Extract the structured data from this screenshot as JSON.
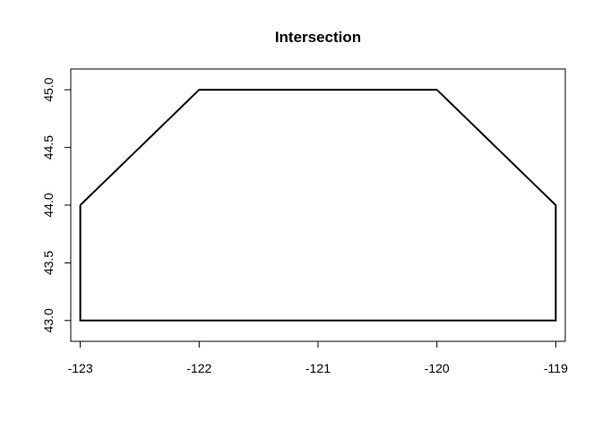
{
  "chart_data": {
    "type": "line",
    "title": "Intersection",
    "xlabel": "",
    "ylabel": "",
    "xlim": [
      -123.08,
      -118.92
    ],
    "ylim": [
      42.82,
      45.18
    ],
    "grid": false,
    "x_ticks": [
      -123,
      -122,
      -121,
      -120,
      -119
    ],
    "x_tick_labels": [
      "-123",
      "-122",
      "-121",
      "-120",
      "-119"
    ],
    "y_ticks": [
      43.0,
      43.5,
      44.0,
      44.5,
      45.0
    ],
    "y_tick_labels": [
      "43.0",
      "43.5",
      "44.0",
      "44.5",
      "45.0"
    ],
    "series": [
      {
        "x": [
          -123,
          -122,
          -120,
          -119,
          -119,
          -123,
          -123
        ],
        "y": [
          44,
          45,
          45,
          44,
          43,
          43,
          44
        ],
        "color": "#000000"
      }
    ]
  }
}
